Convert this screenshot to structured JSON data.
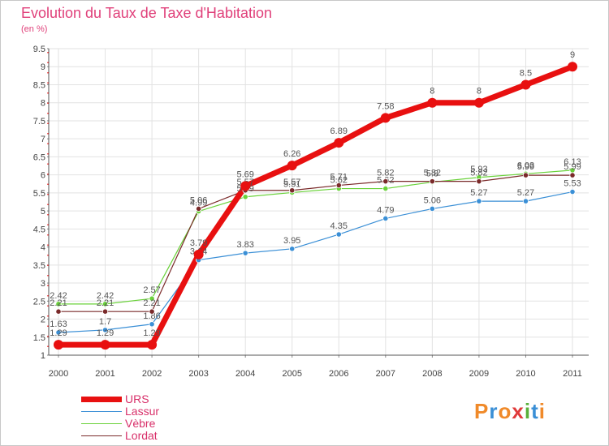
{
  "page": {
    "title": "Evolution du Taux de Taxe d'Habitation",
    "subtitle": "(en %)"
  },
  "logo": {
    "text": "Proxiti",
    "letters": [
      "P",
      "r",
      "o",
      "x",
      "i",
      "t",
      "i"
    ],
    "colors": [
      "#f08a2a",
      "#3a8fd6",
      "#f08a2a",
      "#e03a3a",
      "#5ab03a",
      "#3a8fd6",
      "#f08a2a"
    ]
  },
  "chart_data": {
    "type": "line",
    "title": "Evolution du Taux de Taxe d'Habitation",
    "ylabel": "(en %)",
    "xlabel": "",
    "x": [
      "2000",
      "2001",
      "2002",
      "2003",
      "2004",
      "2005",
      "2006",
      "2007",
      "2008",
      "2009",
      "2010",
      "2011"
    ],
    "ylim": [
      1,
      9.5
    ],
    "yticks": [
      "1",
      "1.5",
      "2",
      "2.5",
      "3",
      "3.5",
      "4",
      "4.5",
      "5",
      "5.5",
      "6",
      "6.5",
      "7",
      "7.5",
      "8",
      "8.5",
      "9",
      "9.5"
    ],
    "legend_position": "bottom-left",
    "series": [
      {
        "name": "Lassur",
        "color": "#3a8fd6",
        "width": 1.2,
        "radius": 3.2,
        "values": [
          1.63,
          1.7,
          1.86,
          3.64,
          3.83,
          3.95,
          4.35,
          4.79,
          5.06,
          5.27,
          5.27,
          5.53
        ],
        "labels": [
          "1.63",
          "1.7",
          "1.86",
          "3.64",
          "3.83",
          "3.95",
          "4.35",
          "4.79",
          "5.06",
          "5.27",
          "5.27",
          "5.53"
        ]
      },
      {
        "name": "Vèbre",
        "color": "#6ad23a",
        "width": 1.2,
        "radius": 3.2,
        "values": [
          2.42,
          2.42,
          2.57,
          4.99,
          5.39,
          5.51,
          5.62,
          5.62,
          5.8,
          5.93,
          6.03,
          6.13
        ],
        "labels": [
          "2.42",
          "2.42",
          "2.57",
          "4.99",
          "5.39",
          "5.51",
          "5.62",
          "5.62",
          "5.8",
          "5.93",
          "6.03",
          "6.13"
        ]
      },
      {
        "name": "Lordat",
        "color": "#7a2a2a",
        "width": 1.2,
        "radius": 3.2,
        "values": [
          2.21,
          2.21,
          2.21,
          5.06,
          5.57,
          5.57,
          5.71,
          5.82,
          5.82,
          5.82,
          5.99,
          5.99
        ],
        "labels": [
          "2.21",
          "2.21",
          "2.21",
          "5.06",
          "5.57",
          "5.57",
          "5.71",
          "5.82",
          "5.82",
          "5.82",
          "5.99",
          "5.99"
        ]
      },
      {
        "name": "URS",
        "color": "#e81010",
        "width": 7,
        "radius": 6,
        "values": [
          1.29,
          1.29,
          1.29,
          3.79,
          5.69,
          6.26,
          6.89,
          7.58,
          8,
          8,
          8.5,
          9
        ],
        "labels": [
          "1.29",
          "1.29",
          "1.29",
          "3.79",
          "5.69",
          "6.26",
          "6.89",
          "7.58",
          "8",
          "8",
          "8.5",
          "9"
        ]
      }
    ]
  },
  "legend": [
    {
      "label": "URS",
      "color": "#e81010",
      "thickness": 7
    },
    {
      "label": "Lassur",
      "color": "#3a8fd6",
      "thickness": 1
    },
    {
      "label": "Vèbre",
      "color": "#6ad23a",
      "thickness": 1
    },
    {
      "label": "Lordat",
      "color": "#7a2a2a",
      "thickness": 1
    }
  ]
}
